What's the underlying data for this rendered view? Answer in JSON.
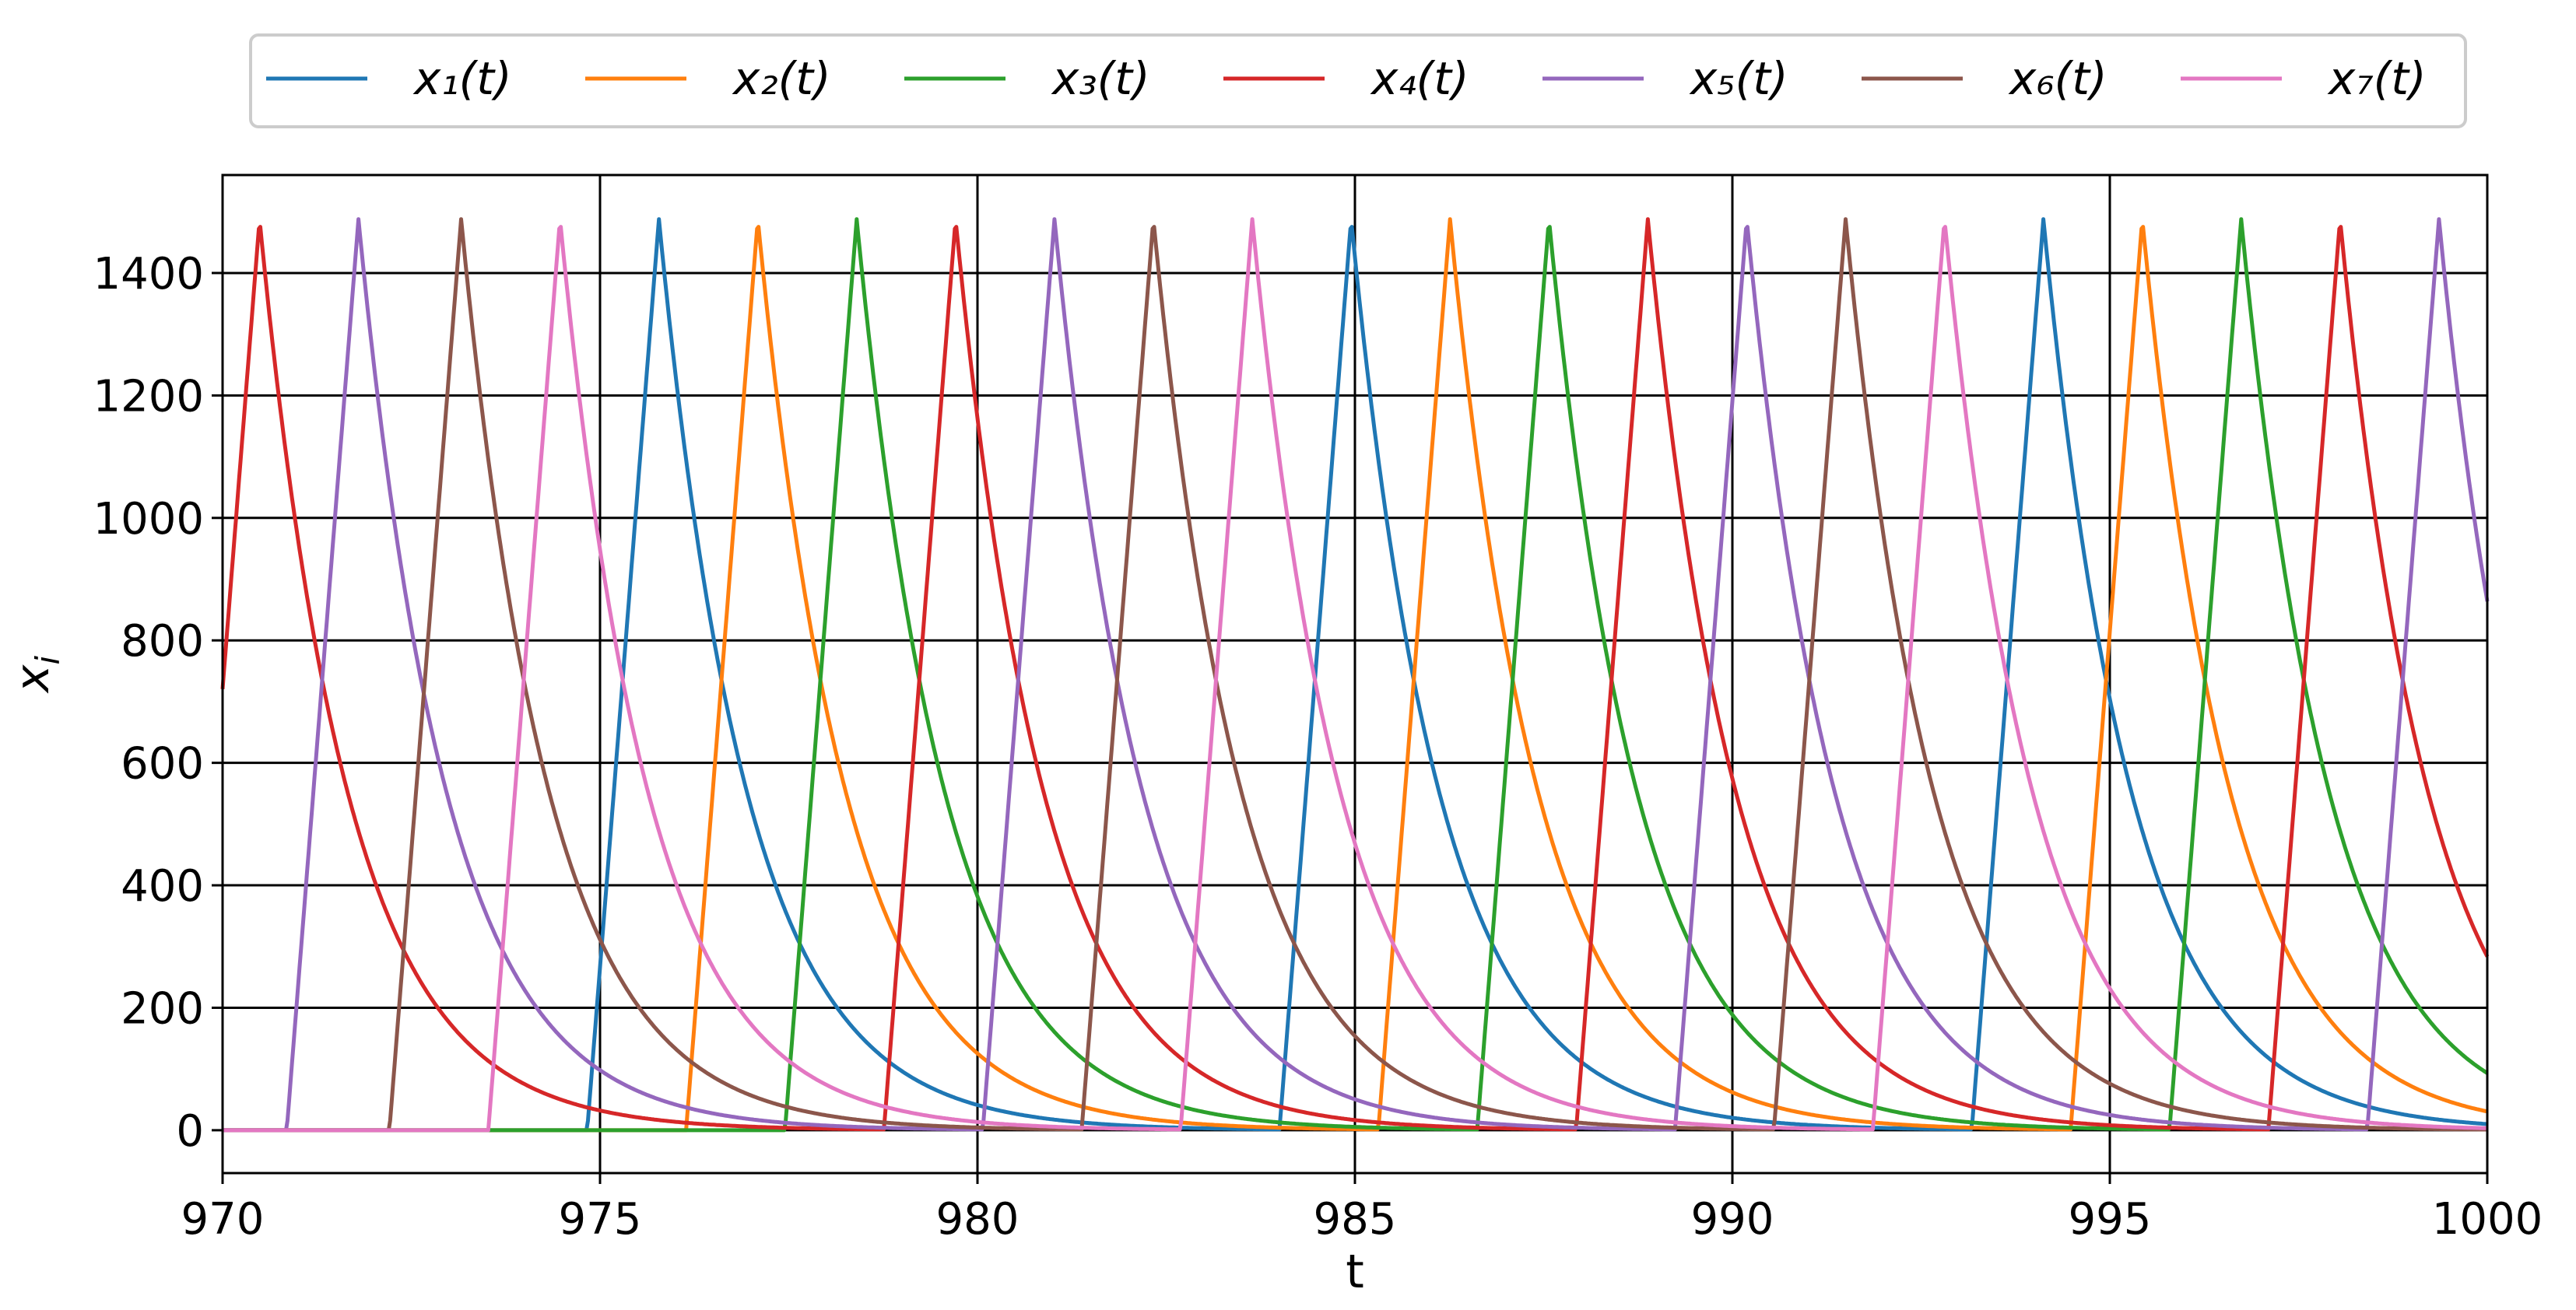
{
  "chart_data": {
    "type": "line",
    "title": "",
    "xlabel": "t",
    "ylabel": "x_i",
    "xlim": [
      970,
      1000
    ],
    "ylim": [
      -70,
      1560
    ],
    "xticks": [
      970,
      975,
      980,
      985,
      990,
      995,
      1000
    ],
    "yticks": [
      0,
      200,
      400,
      600,
      800,
      1000,
      1200,
      1400
    ],
    "grid": true,
    "legend": {
      "placement": "top-center",
      "ncol": 7
    },
    "model": {
      "period": 9.17,
      "peak": 1488,
      "rise_duration": 0.95,
      "decay_rate": 0.85
    },
    "series": [
      {
        "name": "x₁(t)",
        "color": "#1f77b4",
        "peaks": [
          975.78,
          984.95,
          994.12
        ]
      },
      {
        "name": "x₂(t)",
        "color": "#ff7f0e",
        "peaks": [
          977.09,
          986.26,
          995.43
        ]
      },
      {
        "name": "x₃(t)",
        "color": "#2ca02c",
        "peaks": [
          978.4,
          987.57,
          996.74
        ]
      },
      {
        "name": "x₄(t)",
        "color": "#d62728",
        "peaks": [
          970.49,
          979.71,
          988.88,
          998.05
        ]
      },
      {
        "name": "x₅(t)",
        "color": "#9467bd",
        "peaks": [
          971.8,
          981.02,
          990.19,
          999.36
        ]
      },
      {
        "name": "x₆(t)",
        "color": "#8c564b",
        "peaks": [
          973.16,
          982.33,
          991.5
        ]
      },
      {
        "name": "x₇(t)",
        "color": "#e377c2",
        "peaks": [
          974.47,
          983.64,
          992.81
        ]
      }
    ]
  }
}
